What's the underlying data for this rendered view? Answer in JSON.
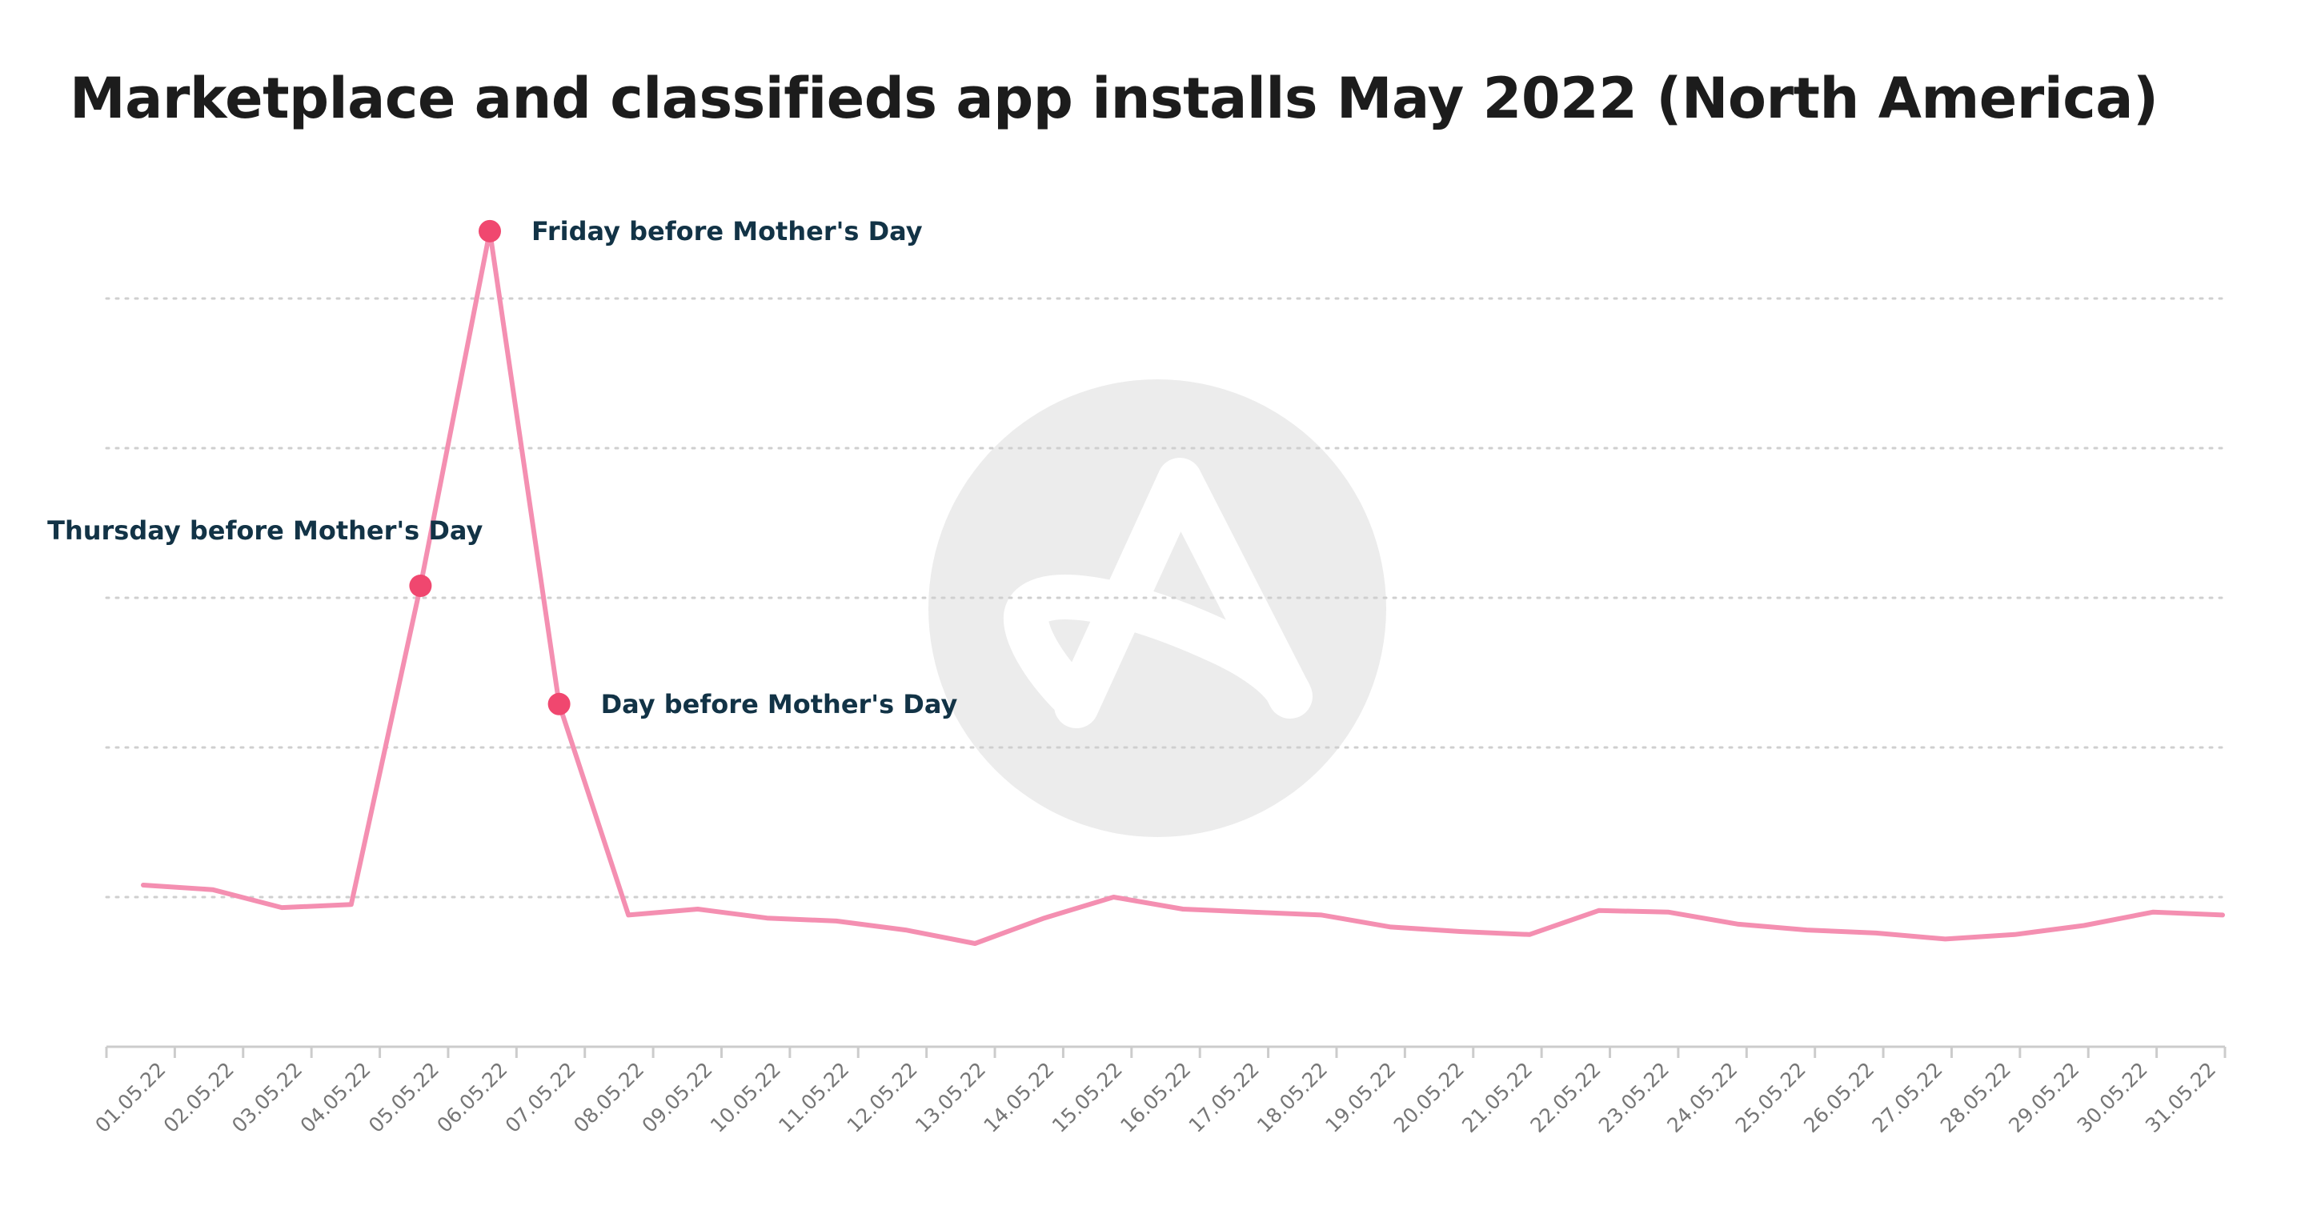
{
  "chart_data": {
    "type": "line",
    "title": "Marketplace and classifieds app installs May 2022 (North America)",
    "xlabel": "",
    "ylabel": "",
    "x": [
      "01.05.22",
      "02.05.22",
      "03.05.22",
      "04.05.22",
      "05.05.22",
      "06.05.22",
      "07.05.22",
      "08.05.22",
      "09.05.22",
      "10.05.22",
      "11.05.22",
      "12.05.22",
      "13.05.22",
      "14.05.22",
      "15.05.22",
      "16.05.22",
      "17.05.22",
      "18.05.22",
      "19.05.22",
      "20.05.22",
      "21.05.22",
      "22.05.22",
      "23.05.22",
      "24.05.22",
      "25.05.22",
      "26.05.22",
      "27.05.22",
      "28.05.22",
      "29.05.22",
      "30.05.22",
      "31.05.22"
    ],
    "series": [
      {
        "values": [
          1.08,
          1.05,
          0.93,
          0.95,
          3.08,
          5.45,
          2.29,
          0.88,
          0.92,
          0.86,
          0.84,
          0.78,
          0.69,
          0.86,
          1.0,
          0.92,
          0.9,
          0.88,
          0.8,
          0.77,
          0.75,
          0.91,
          0.9,
          0.82,
          0.78,
          0.76,
          0.72,
          0.75,
          0.81,
          0.9,
          0.88
        ],
        "color": "#f48fb1"
      }
    ],
    "ylim": [
      0,
      5
    ],
    "y_gridlines": [
      1,
      2,
      3,
      4,
      5
    ],
    "y_tick_labels": "hidden",
    "grid": "horizontal-dotted",
    "legend": "none",
    "annotations": [
      {
        "x": "05.05.22",
        "text": "Thursday before Mother's Day",
        "label_position": "above-left",
        "color": "#f0476f"
      },
      {
        "x": "06.05.22",
        "text": "Friday before Mother's Day",
        "label_position": "right",
        "color": "#f0476f"
      },
      {
        "x": "07.05.22",
        "text": "Day before Mother's Day",
        "label_position": "right",
        "color": "#f0476f"
      }
    ],
    "watermark": {
      "icon": "brand-logo-icon",
      "color": "#ececec"
    }
  }
}
